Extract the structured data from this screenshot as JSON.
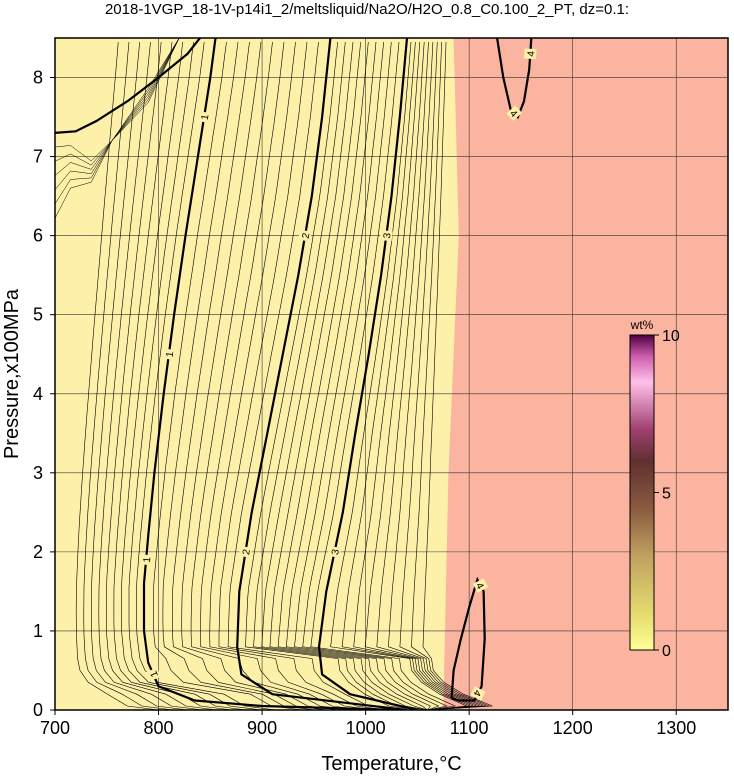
{
  "chart_data": {
    "type": "contour",
    "title": "2018-1VGP_18-1V-p14i1_2/meltsliquid/Na2O/H2O_0.8_C0.100_2_PT, dz=0.1:",
    "xlabel": "Temperature,°C",
    "ylabel": "Pressure,x100MPa",
    "xlim": [
      700,
      1350
    ],
    "ylim": [
      0,
      8.5
    ],
    "x_ticks": [
      700,
      800,
      900,
      1000,
      1100,
      1200,
      1300
    ],
    "y_ticks": [
      0,
      1,
      2,
      3,
      4,
      5,
      6,
      7,
      8
    ],
    "grid": true,
    "contour_interval": 0.1,
    "colors": {
      "low_field": "#fdf0a8",
      "high_field": "#fbb4a0",
      "grid": "#333333",
      "contour": "#000000"
    },
    "fill_boundary_note_T": [
      [
        8.5,
        1085
      ],
      [
        6.0,
        1090
      ],
      [
        3.0,
        1080
      ],
      [
        0.0,
        1075
      ]
    ],
    "major_contours": [
      {
        "level": 1,
        "labels": [
          "1",
          "1",
          "1",
          "1"
        ],
        "points": [
          [
            1035,
            0.0
          ],
          [
            900,
            0.05
          ],
          [
            835,
            0.12
          ],
          [
            800,
            0.3
          ],
          [
            790,
            0.6
          ],
          [
            786,
            1.0
          ],
          [
            786,
            1.6
          ],
          [
            790,
            2.2
          ],
          [
            796,
            3.0
          ],
          [
            805,
            4.0
          ],
          [
            815,
            5.0
          ],
          [
            826,
            6.0
          ],
          [
            838,
            7.0
          ],
          [
            850,
            8.0
          ],
          [
            855,
            8.5
          ]
        ]
      },
      {
        "level": 1,
        "labels": [],
        "points": [
          [
            700,
            7.3
          ],
          [
            720,
            7.32
          ],
          [
            740,
            7.45
          ],
          [
            770,
            7.7
          ],
          [
            800,
            8.0
          ],
          [
            828,
            8.3
          ],
          [
            840,
            8.5
          ]
        ]
      },
      {
        "level": 2,
        "labels": [
          "2",
          "2"
        ],
        "points": [
          [
            1040,
            0.0
          ],
          [
            910,
            0.2
          ],
          [
            880,
            0.45
          ],
          [
            876,
            0.8
          ],
          [
            878,
            1.5
          ],
          [
            890,
            2.5
          ],
          [
            905,
            3.5
          ],
          [
            920,
            4.5
          ],
          [
            935,
            5.5
          ],
          [
            948,
            6.5
          ],
          [
            958,
            7.5
          ],
          [
            966,
            8.5
          ]
        ]
      },
      {
        "level": 3,
        "labels": [
          "3",
          "3"
        ],
        "points": [
          [
            1050,
            0.0
          ],
          [
            985,
            0.2
          ],
          [
            958,
            0.45
          ],
          [
            955,
            0.8
          ],
          [
            962,
            1.5
          ],
          [
            978,
            2.5
          ],
          [
            990,
            3.5
          ],
          [
            1003,
            4.5
          ],
          [
            1015,
            5.5
          ],
          [
            1025,
            6.5
          ],
          [
            1033,
            7.5
          ],
          [
            1040,
            8.5
          ]
        ]
      },
      {
        "level": 4,
        "labels": [
          "4",
          "4"
        ],
        "points": [
          [
            1083,
            0.15
          ],
          [
            1085,
            0.5
          ],
          [
            1092,
            0.9
          ],
          [
            1100,
            1.3
          ],
          [
            1108,
            1.65
          ],
          [
            1114,
            1.5
          ],
          [
            1115,
            0.9
          ],
          [
            1112,
            0.3
          ],
          [
            1105,
            0.12
          ],
          [
            1090,
            0.12
          ],
          [
            1083,
            0.15
          ]
        ]
      },
      {
        "level": 4,
        "labels": [
          "4",
          "4"
        ],
        "points": [
          [
            1127,
            8.5
          ],
          [
            1133,
            8.0
          ],
          [
            1140,
            7.6
          ],
          [
            1147,
            7.5
          ],
          [
            1153,
            7.7
          ],
          [
            1158,
            8.1
          ],
          [
            1160,
            8.5
          ]
        ]
      }
    ],
    "colorbar": {
      "label": "wt%",
      "ticks": [
        0,
        5,
        10
      ],
      "min": 0,
      "max": 10,
      "stops": [
        {
          "value": 0,
          "color": "#ffff99"
        },
        {
          "value": 1,
          "color": "#e8e070"
        },
        {
          "value": 3,
          "color": "#c0a060"
        },
        {
          "value": 4.5,
          "color": "#8a5a40"
        },
        {
          "value": 6,
          "color": "#603030"
        },
        {
          "value": 7,
          "color": "#a04070"
        },
        {
          "value": 8.5,
          "color": "#ffc0e8"
        },
        {
          "value": 9.3,
          "color": "#d060b0"
        },
        {
          "value": 10,
          "color": "#500040"
        }
      ]
    }
  }
}
